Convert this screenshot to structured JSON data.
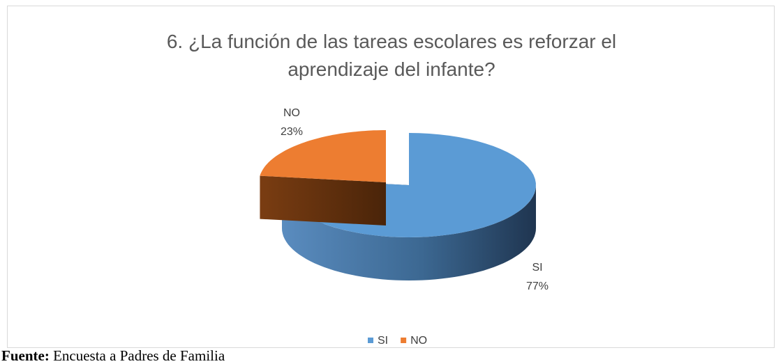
{
  "chart_data": {
    "type": "pie",
    "title": "6. ¿La función de las tareas escolares es reforzar el aprendizaje del infante?",
    "categories": [
      "SI",
      "NO"
    ],
    "values": [
      77,
      23
    ],
    "value_labels": [
      "77%",
      "23%"
    ],
    "colors": [
      "#5b9bd5",
      "#ed7d31"
    ],
    "legend": "bottom"
  },
  "caption": {
    "label": "Fuente:",
    "text": "Encuesta a Padres de Familia"
  }
}
